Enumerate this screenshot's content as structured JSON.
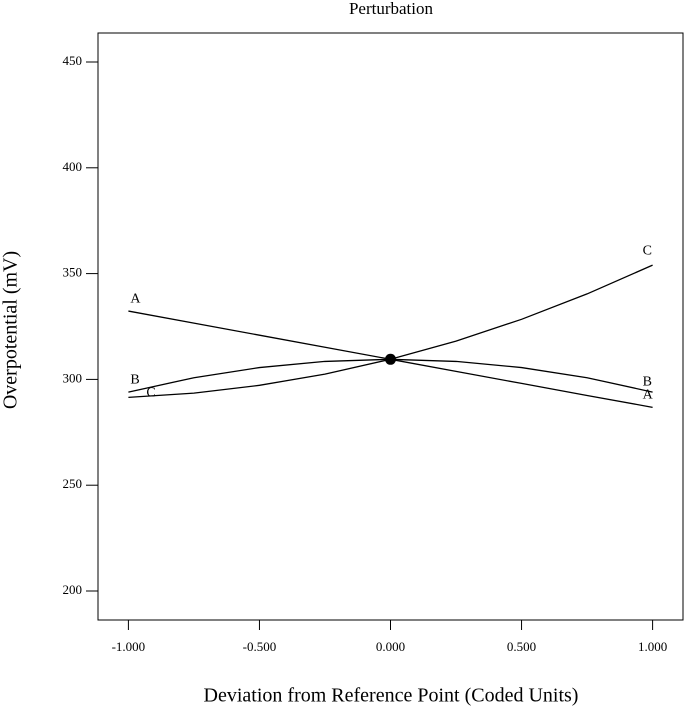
{
  "chart_data": {
    "type": "line",
    "title": "Perturbation",
    "x_label": "Deviation from Reference Point (Coded Units)",
    "y_label": "Overpotential (mV)",
    "x": [
      -1,
      -0.75,
      -0.5,
      -0.25,
      0,
      0.25,
      0.5,
      0.75,
      1
    ],
    "series": [
      {
        "name": "A",
        "color": "#000000",
        "values": [
          332.3,
          326.6,
          320.9,
          315.2,
          309.5,
          303.8,
          298.1,
          292.4,
          286.8
        ]
      },
      {
        "name": "B",
        "color": "#000000",
        "values": [
          294.0,
          300.8,
          305.6,
          308.5,
          309.5,
          308.5,
          305.6,
          300.8,
          294.0
        ]
      },
      {
        "name": "C",
        "color": "#000000",
        "values": [
          291.5,
          293.5,
          297.2,
          302.5,
          309.5,
          318.1,
          328.4,
          340.4,
          354.0
        ]
      }
    ],
    "reference_point": {
      "x": 0,
      "y": 309.5
    },
    "xlim": [
      -1.116,
      1.116
    ],
    "ylim": [
      186.3,
      463.7
    ],
    "xticks": [
      {
        "value": -1,
        "label": "-1.000"
      },
      {
        "value": -0.5,
        "label": "-0.500"
      },
      {
        "value": 0,
        "label": "0.000"
      },
      {
        "value": 0.5,
        "label": "0.500"
      },
      {
        "value": 1,
        "label": "1.000"
      }
    ],
    "yticks": [
      200,
      250,
      300,
      350,
      400,
      450
    ]
  }
}
